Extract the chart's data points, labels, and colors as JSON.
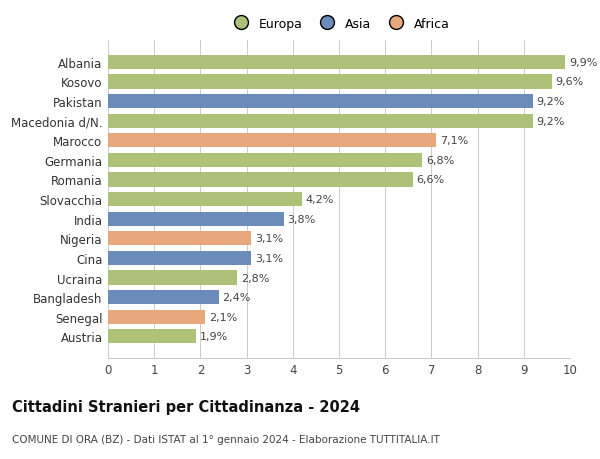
{
  "categories": [
    "Albania",
    "Kosovo",
    "Pakistan",
    "Macedonia d/N.",
    "Marocco",
    "Germania",
    "Romania",
    "Slovacchia",
    "India",
    "Nigeria",
    "Cina",
    "Ucraina",
    "Bangladesh",
    "Senegal",
    "Austria"
  ],
  "values": [
    9.9,
    9.6,
    9.2,
    9.2,
    7.1,
    6.8,
    6.6,
    4.2,
    3.8,
    3.1,
    3.1,
    2.8,
    2.4,
    2.1,
    1.9
  ],
  "labels": [
    "9,9%",
    "9,6%",
    "9,2%",
    "9,2%",
    "7,1%",
    "6,8%",
    "6,6%",
    "4,2%",
    "3,8%",
    "3,1%",
    "3,1%",
    "2,8%",
    "2,4%",
    "2,1%",
    "1,9%"
  ],
  "continents": [
    "Europa",
    "Europa",
    "Asia",
    "Europa",
    "Africa",
    "Europa",
    "Europa",
    "Europa",
    "Asia",
    "Africa",
    "Asia",
    "Europa",
    "Asia",
    "Africa",
    "Europa"
  ],
  "colors": {
    "Europa": "#adc178",
    "Asia": "#6b8cba",
    "Africa": "#e8a87c"
  },
  "xlim": [
    0,
    10
  ],
  "xticks": [
    0,
    1,
    2,
    3,
    4,
    5,
    6,
    7,
    8,
    9,
    10
  ],
  "title": "Cittadini Stranieri per Cittadinanza - 2024",
  "subtitle": "COMUNE DI ORA (BZ) - Dati ISTAT al 1° gennaio 2024 - Elaborazione TUTTITALIA.IT",
  "background_color": "#ffffff",
  "grid_color": "#cccccc",
  "bar_height": 0.72,
  "label_fontsize": 8,
  "tick_fontsize": 8.5,
  "title_fontsize": 10.5,
  "subtitle_fontsize": 7.5
}
